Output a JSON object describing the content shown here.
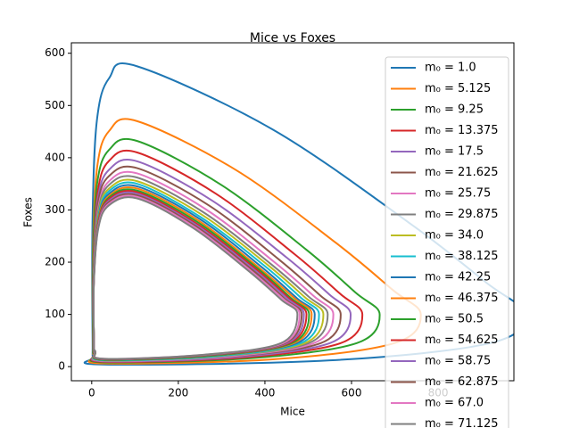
{
  "chart_data": {
    "type": "line",
    "title": "Mice vs Foxes",
    "x_label": "Mice",
    "y_label": "Foxes",
    "xlim": [
      -47,
      975
    ],
    "ylim": [
      -27,
      620
    ],
    "xticks": [
      0,
      200,
      400,
      600,
      800
    ],
    "yticks": [
      0,
      100,
      200,
      300,
      400,
      500,
      600
    ],
    "legend_position": "upper right",
    "series": [
      {
        "name": "m₀ = 1.0",
        "color": "#1f77b4",
        "x": [
          2,
          2,
          12,
          40,
          105,
          418,
          732,
          911,
          1000,
          920,
          550,
          30,
          5
        ],
        "values": [
          50,
          288,
          472,
          552,
          575,
          454,
          276,
          161,
          100,
          45,
          12,
          4,
          19
        ]
      },
      {
        "name": "m₀ = 5.125",
        "color": "#ff7f0e",
        "x": [
          3,
          3,
          13,
          40,
          105,
          334,
          564,
          695,
          760,
          699,
          418,
          30,
          6
        ],
        "values": [
          50,
          235,
          385,
          451,
          470,
          376,
          237,
          147,
          100,
          45,
          14,
          6,
          21
        ]
      },
      {
        "name": "m₀ = 9.25",
        "color": "#2ca02c",
        "x": [
          3,
          3,
          13,
          40,
          105,
          301,
          497,
          609,
          665,
          612,
          366,
          30,
          6
        ],
        "values": [
          50,
          216,
          354,
          415,
          432,
          347,
          223,
          142,
          100,
          45,
          16,
          8,
          23
        ]
      },
      {
        "name": "m₀ = 13.375",
        "color": "#d62728",
        "x": [
          4,
          4,
          14,
          40,
          105,
          287,
          469,
          573,
          625,
          575,
          344,
          30,
          7
        ],
        "values": [
          50,
          205,
          336,
          394,
          410,
          331,
          215,
          140,
          100,
          45,
          17,
          9,
          24
        ]
      },
      {
        "name": "m₀ = 17.5",
        "color": "#9467bd",
        "x": [
          4,
          4,
          14,
          40,
          105,
          278,
          450,
          549,
          598,
          550,
          329,
          30,
          7
        ],
        "values": [
          50,
          197,
          322,
          377,
          393,
          318,
          209,
          138,
          100,
          45,
          18,
          10,
          25
        ]
      },
      {
        "name": "m₀ = 21.625",
        "color": "#8c564b",
        "x": [
          4,
          4,
          14,
          40,
          105,
          270,
          434,
          528,
          575,
          529,
          316,
          30,
          7
        ],
        "values": [
          50,
          190,
          312,
          365,
          380,
          309,
          204,
          136,
          100,
          45,
          19,
          11,
          26
        ]
      },
      {
        "name": "m₀ = 25.75",
        "color": "#e377c2",
        "x": [
          5,
          5,
          15,
          40,
          105,
          264,
          422,
          513,
          558,
          513,
          307,
          30,
          8
        ],
        "values": [
          50,
          185,
          303,
          355,
          370,
          301,
          200,
          135,
          100,
          45,
          19,
          11,
          26
        ]
      },
      {
        "name": "m₀ = 29.875",
        "color": "#7f7f7f",
        "x": [
          5,
          5,
          15,
          40,
          105,
          259,
          413,
          501,
          545,
          501,
          300,
          30,
          8
        ],
        "values": [
          50,
          181,
          297,
          348,
          362,
          295,
          197,
          134,
          100,
          45,
          20,
          12,
          27
        ]
      },
      {
        "name": "m₀ = 34.0",
        "color": "#bcbd22",
        "x": [
          5,
          5,
          15,
          40,
          105,
          256,
          406,
          492,
          535,
          492,
          294,
          30,
          8
        ],
        "values": [
          50,
          178,
          291,
          341,
          355,
          290,
          195,
          133,
          100,
          45,
          20,
          12,
          27
        ]
      },
      {
        "name": "m₀ = 38.125",
        "color": "#17becf",
        "x": [
          5,
          5,
          15,
          40,
          105,
          252,
          399,
          483,
          525,
          483,
          289,
          30,
          8
        ],
        "values": [
          50,
          175,
          287,
          336,
          350,
          286,
          193,
          132,
          100,
          45,
          20,
          12,
          27
        ]
      },
      {
        "name": "m₀ = 42.25",
        "color": "#1f77b4",
        "x": [
          5,
          5,
          15,
          40,
          105,
          249,
          392,
          474,
          515,
          474,
          283,
          30,
          8
        ],
        "values": [
          50,
          173,
          283,
          331,
          345,
          283,
          191,
          131,
          100,
          45,
          21,
          13,
          28
        ]
      },
      {
        "name": "m₀ = 46.375",
        "color": "#ff7f0e",
        "x": [
          5,
          5,
          15,
          40,
          105,
          246,
          387,
          468,
          508,
          467,
          279,
          30,
          8
        ],
        "values": [
          50,
          171,
          280,
          327,
          341,
          280,
          189,
          131,
          100,
          45,
          21,
          13,
          28
        ]
      },
      {
        "name": "m₀ = 50.5",
        "color": "#2ca02c",
        "x": [
          5,
          5,
          15,
          40,
          105,
          244,
          383,
          462,
          502,
          462,
          276,
          30,
          8
        ],
        "values": [
          50,
          169,
          276,
          324,
          337,
          277,
          188,
          130,
          100,
          45,
          21,
          13,
          28
        ]
      },
      {
        "name": "m₀ = 54.625",
        "color": "#d62728",
        "x": [
          5,
          5,
          15,
          40,
          105,
          242,
          379,
          457,
          496,
          456,
          273,
          30,
          8
        ],
        "values": [
          50,
          167,
          274,
          321,
          334,
          274,
          187,
          130,
          100,
          45,
          22,
          14,
          29
        ]
      },
      {
        "name": "m₀ = 58.75",
        "color": "#9467bd",
        "x": [
          5,
          5,
          15,
          40,
          105,
          240,
          375,
          452,
          490,
          451,
          270,
          30,
          8
        ],
        "values": [
          50,
          166,
          271,
          318,
          331,
          272,
          186,
          130,
          100,
          45,
          22,
          14,
          29
        ]
      },
      {
        "name": "m₀ = 62.875",
        "color": "#8c564b",
        "x": [
          5,
          5,
          15,
          40,
          105,
          238,
          371,
          447,
          485,
          446,
          267,
          30,
          8
        ],
        "values": [
          50,
          164,
          269,
          315,
          328,
          270,
          185,
          129,
          100,
          45,
          22,
          14,
          29
        ]
      },
      {
        "name": "m₀ = 67.0",
        "color": "#e377c2",
        "x": [
          5,
          5,
          15,
          40,
          105,
          236,
          368,
          443,
          480,
          442,
          264,
          30,
          8
        ],
        "values": [
          50,
          163,
          267,
          312,
          325,
          268,
          183,
          129,
          100,
          45,
          23,
          15,
          30
        ]
      },
      {
        "name": "m₀ = 71.125",
        "color": "#7f7f7f",
        "x": [
          5,
          5,
          15,
          40,
          105,
          235,
          364,
          438,
          475,
          437,
          261,
          30,
          8
        ],
        "values": [
          50,
          161,
          264,
          309,
          322,
          265,
          182,
          128,
          100,
          45,
          23,
          15,
          30
        ]
      }
    ]
  }
}
